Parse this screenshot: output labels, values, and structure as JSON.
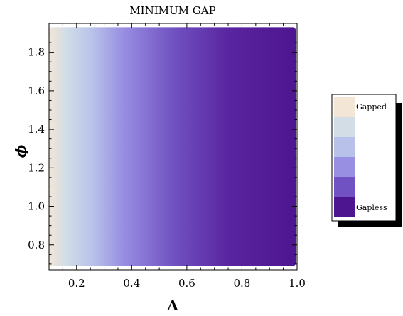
{
  "chart_data": {
    "type": "heatmap",
    "title": "MINIMUM GAP",
    "xlabel": "Λ",
    "ylabel": "ϕ",
    "xlim": [
      0.1,
      1.0
    ],
    "ylim": [
      0.67,
      1.95
    ],
    "data_extent": {
      "x": [
        0.1,
        0.995
      ],
      "y": [
        0.69,
        1.93
      ]
    },
    "xticks": [
      {
        "value": 0.2,
        "label": "0.2"
      },
      {
        "value": 0.4,
        "label": "0.4"
      },
      {
        "value": 0.6,
        "label": "0.6"
      },
      {
        "value": 0.8,
        "label": "0.8"
      },
      {
        "value": 1.0,
        "label": "1.0"
      }
    ],
    "yticks": [
      {
        "value": 0.8,
        "label": "0.8"
      },
      {
        "value": 1.0,
        "label": "1.0"
      },
      {
        "value": 1.2,
        "label": "1.2"
      },
      {
        "value": 1.4,
        "label": "1.4"
      },
      {
        "value": 1.6,
        "label": "1.6"
      },
      {
        "value": 1.8,
        "label": "1.8"
      }
    ],
    "legend": {
      "placement": "right",
      "top_label": "Gapped",
      "bottom_label": "Gapless",
      "swatches": [
        "#f3e6d6",
        "#d2dde6",
        "#b7c1ea",
        "#988ee2",
        "#7152c2",
        "#4e1590"
      ]
    },
    "gradient_stops": [
      {
        "x": 0.1,
        "color": "#f3e6d6"
      },
      {
        "x": 0.16,
        "color": "#d2dde6"
      },
      {
        "x": 0.26,
        "color": "#b7c1ea"
      },
      {
        "x": 0.37,
        "color": "#988ee2"
      },
      {
        "x": 0.55,
        "color": "#7152c2"
      },
      {
        "x": 0.75,
        "color": "#5a25a0"
      },
      {
        "x": 1.0,
        "color": "#4e1590"
      }
    ],
    "grid": false
  }
}
